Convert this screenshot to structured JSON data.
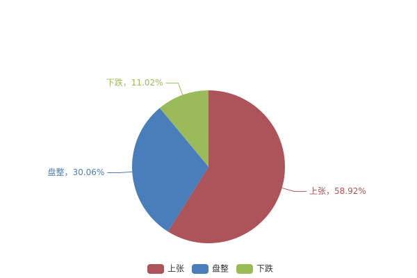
{
  "chart_data": {
    "type": "pie",
    "categories": [
      "上张",
      "盘整",
      "下跌"
    ],
    "values": [
      58.92,
      30.06,
      11.02
    ],
    "value_labels": [
      "上张，58.92%",
      "盘整，30.06%",
      "下跌，11.02%"
    ],
    "colors": [
      "#ad545a",
      "#4a7ebb",
      "#9bbb59"
    ],
    "legend": "bottom"
  }
}
